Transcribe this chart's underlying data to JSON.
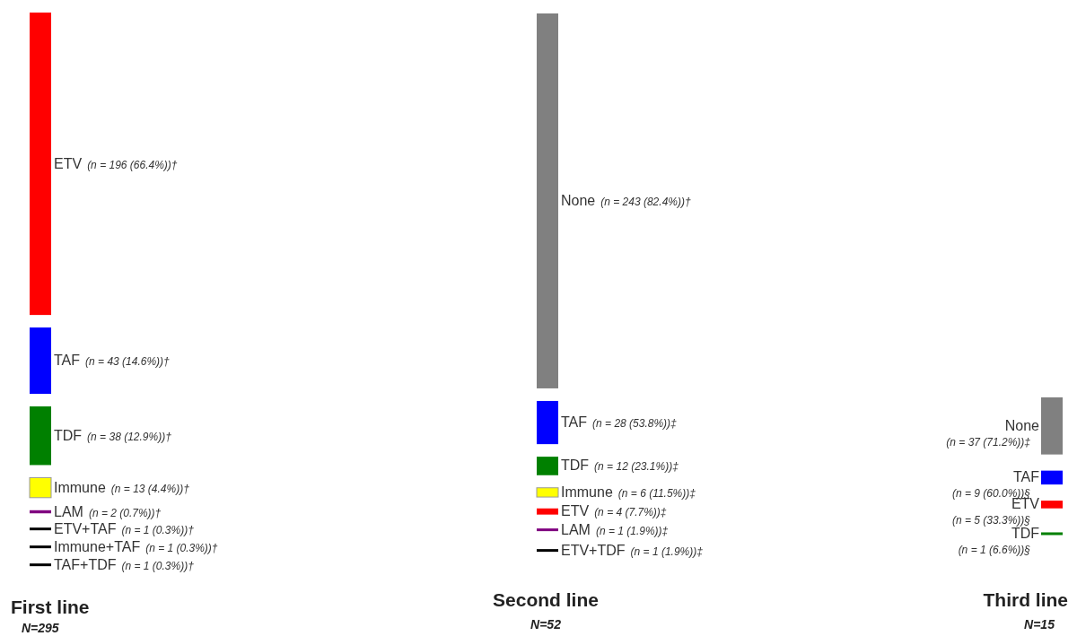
{
  "chart_data": {
    "type": "other",
    "categories": [
      "ETV",
      "TAF",
      "TDF",
      "Immune",
      "LAM",
      "ETV+TAF",
      "Immune+TAF",
      "TAF+TDF",
      "None",
      "TAF",
      "TDF",
      "Immune",
      "ETV",
      "LAM",
      "ETV+TDF",
      "None",
      "TAF",
      "ETV",
      "TDF"
    ],
    "values": [
      196,
      43,
      38,
      13,
      2,
      1,
      1,
      1,
      243,
      28,
      12,
      6,
      4,
      1,
      1,
      37,
      9,
      5,
      1
    ],
    "value_labels": [
      "(n = 196 (66.4%))†",
      "(n = 43 (14.6%))†",
      "(n = 38 (12.9%))†",
      "(n = 13 (4.4%))†",
      "(n = 2 (0.7%))†",
      "(n = 1 (0.3%))†",
      "(n = 1 (0.3%))†",
      "(n = 1 (0.3%))†",
      "(n = 243 (82.4%))†",
      "(n = 28 (53.8%))‡",
      "(n = 12 (23.1%))‡",
      "(n = 6 (11.5%))‡",
      "(n = 4 (7.7%))‡",
      "(n = 1 (1.9%))‡",
      "(n = 1 (1.9%))‡",
      "(n = 37 (71.2%))‡",
      "(n = 9 (60.0%))§",
      "(n = 5 (33.3%))§",
      "(n = 1 (6.6%))§"
    ],
    "colors": [
      "#ff0000",
      "#0000ff",
      "#008000",
      "#ffff00",
      "#800080",
      "#000000",
      "#000000",
      "#000000",
      "#808080",
      "#0000ff",
      "#008000",
      "#ffff00",
      "#ff0000",
      "#800080",
      "#000000",
      "#808080",
      "#0000ff",
      "#ff0000",
      "#008000"
    ],
    "annotations": [
      "First line",
      "N=295",
      "Second line",
      "N=52",
      "Third line",
      "N=15"
    ]
  }
}
